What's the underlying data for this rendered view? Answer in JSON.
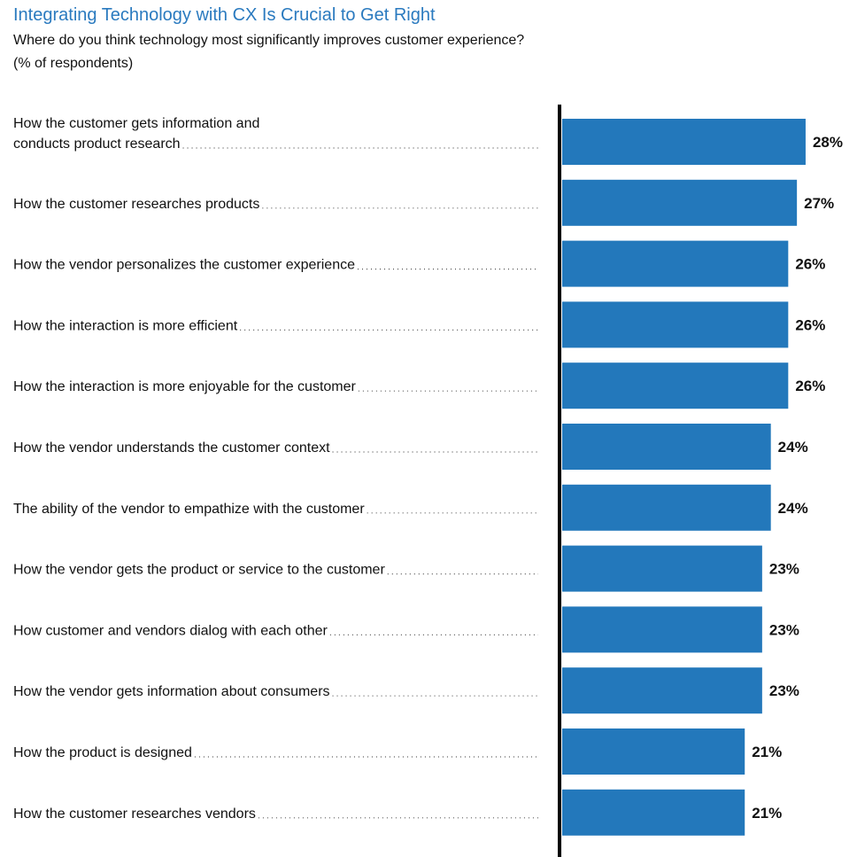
{
  "chart_data": {
    "type": "bar",
    "orientation": "horizontal",
    "title": "Integrating Technology with CX Is Crucial to Get Right",
    "subtitle": "Where do you think technology most significantly improves customer experience?",
    "units_note": "(% of respondents)",
    "xlabel": "",
    "ylabel": "",
    "value_suffix": "%",
    "xlim": [
      0,
      30
    ],
    "grid": false,
    "legend": "none",
    "bar_color": "#2378bb",
    "axis_color": "#000000",
    "title_color": "#2a7abf",
    "categories": [
      [
        "How the customer gets information and",
        "conducts product research"
      ],
      [
        "How the customer researches products"
      ],
      [
        "How the vendor personalizes the customer experience"
      ],
      [
        "How the interaction is more efficient"
      ],
      [
        "How the interaction is more enjoyable for the customer"
      ],
      [
        "How the vendor understands the customer context"
      ],
      [
        "The ability of the vendor to empathize with the customer"
      ],
      [
        "How the vendor gets the product or service to the customer"
      ],
      [
        "How customer and vendors dialog with each other"
      ],
      [
        "How the vendor gets information about consumers"
      ],
      [
        "How the product is designed"
      ],
      [
        "How the customer researches vendors"
      ]
    ],
    "values": [
      28,
      27,
      26,
      26,
      26,
      24,
      24,
      23,
      23,
      23,
      21,
      21
    ]
  }
}
